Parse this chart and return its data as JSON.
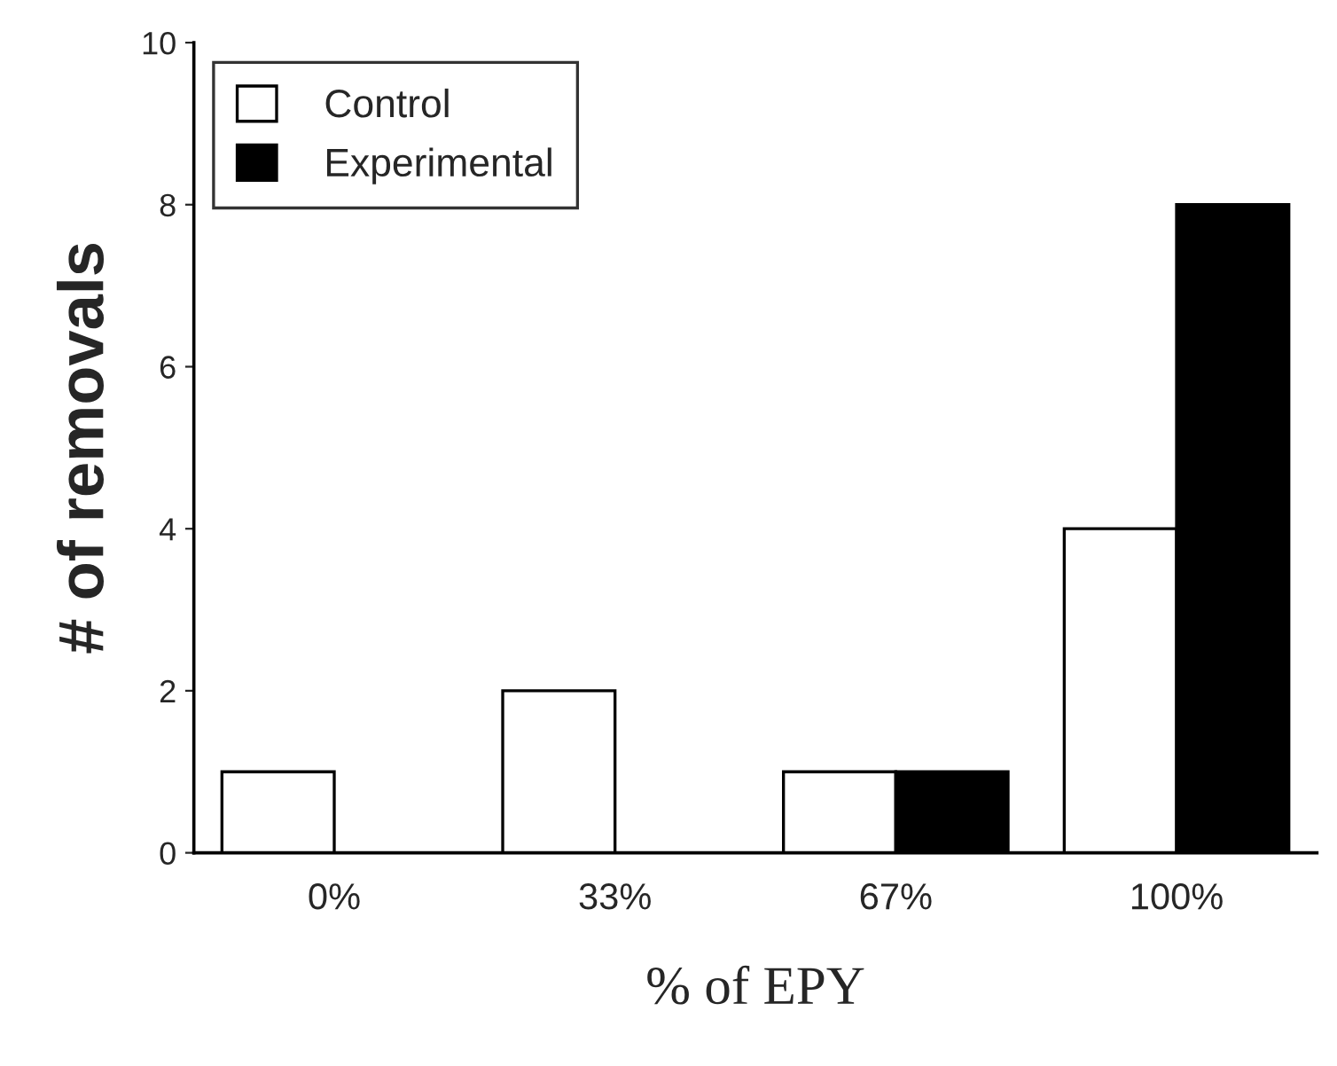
{
  "chart_data": {
    "type": "bar",
    "xlabel": "% of EPY",
    "ylabel": "# of removals",
    "categories": [
      "0%",
      "33%",
      "67%",
      "100%"
    ],
    "series": [
      {
        "name": "Control",
        "color": "#ffffff",
        "values": [
          1,
          2,
          1,
          4
        ]
      },
      {
        "name": "Experimental",
        "color": "#000000",
        "values": [
          0,
          0,
          1,
          8
        ]
      }
    ],
    "ylim": [
      0,
      10
    ],
    "yticks": [
      0,
      2,
      4,
      6,
      8,
      10
    ],
    "grid": false,
    "legend": "top left"
  }
}
